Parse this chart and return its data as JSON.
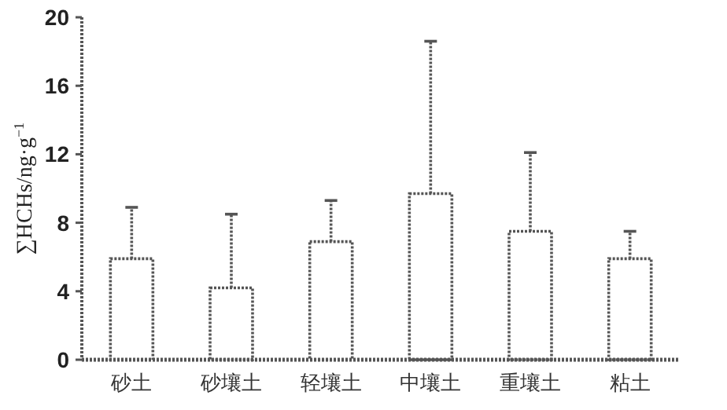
{
  "chart_data": {
    "type": "bar",
    "ylabel": "∑HCHs/ng·g$^{−1}$",
    "categories": [
      "砂土",
      "砂壤土",
      "轻壤土",
      "中壤土",
      "重壤土",
      "粘土"
    ],
    "values": [
      5.9,
      4.2,
      6.9,
      9.7,
      7.5,
      5.9
    ],
    "errors": [
      [
        5.9,
        8.9
      ],
      [
        4.2,
        8.5
      ],
      [
        6.9,
        9.3
      ],
      [
        9.7,
        18.6
      ],
      [
        7.5,
        12.1
      ],
      [
        5.9,
        7.5
      ]
    ],
    "color": "#ffffff",
    "line_style": "dotted",
    "ylim": [
      0,
      20
    ],
    "yticks": [
      0,
      4,
      8,
      12,
      16,
      20
    ],
    "grid": false
  }
}
